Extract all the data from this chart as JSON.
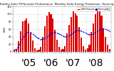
{
  "title": "Monthly Solar PV/Inverter Performance  Monthly Solar Energy Production  Running Average",
  "title_fontsize": 2.8,
  "bg_color": "#ffffff",
  "plot_bg_color": "#ffffff",
  "bar_color": "#dd0000",
  "avg_color": "#0000cc",
  "tick_color": "#000000",
  "grid_color": "#aaaaaa",
  "values": [
    5,
    8,
    28,
    55,
    80,
    82,
    88,
    75,
    50,
    30,
    10,
    4,
    6,
    12,
    40,
    68,
    95,
    105,
    100,
    88,
    58,
    32,
    12,
    5,
    8,
    15,
    48,
    72,
    92,
    108,
    102,
    95,
    65,
    38,
    15,
    6,
    10,
    18,
    52,
    75,
    100,
    110,
    108,
    96,
    62,
    40,
    18,
    8
  ],
  "avg_values": [
    5,
    6.5,
    13.7,
    24.0,
    35.2,
    43.0,
    49.7,
    52.4,
    50.9,
    47.2,
    42.8,
    38.2,
    35.0,
    32.5,
    32.8,
    34.8,
    38.5,
    43.5,
    48.0,
    51.0,
    51.5,
    49.5,
    47.3,
    44.2,
    41.8,
    39.7,
    40.3,
    42.5,
    45.7,
    50.0,
    53.5,
    56.1,
    56.6,
    54.8,
    52.5,
    49.8,
    47.2,
    45.3,
    45.5,
    47.3,
    50.8,
    55.0,
    58.5,
    60.8,
    61.1,
    59.5,
    57.3,
    55.0
  ],
  "ylim": [
    0,
    120
  ],
  "yticks": [
    0,
    20,
    40,
    60,
    80,
    100,
    120
  ],
  "year_starts": [
    0,
    12,
    24,
    36
  ],
  "year_labels": [
    "'05",
    "'06",
    "'07",
    "'08"
  ],
  "month_labels": [
    "J",
    "F",
    "M",
    "A",
    "M",
    "J",
    "J",
    "A",
    "S",
    "O",
    "N",
    "D"
  ],
  "legend_labels": [
    "kWh Produced",
    "Running Avg"
  ],
  "ylabel": "kWh"
}
